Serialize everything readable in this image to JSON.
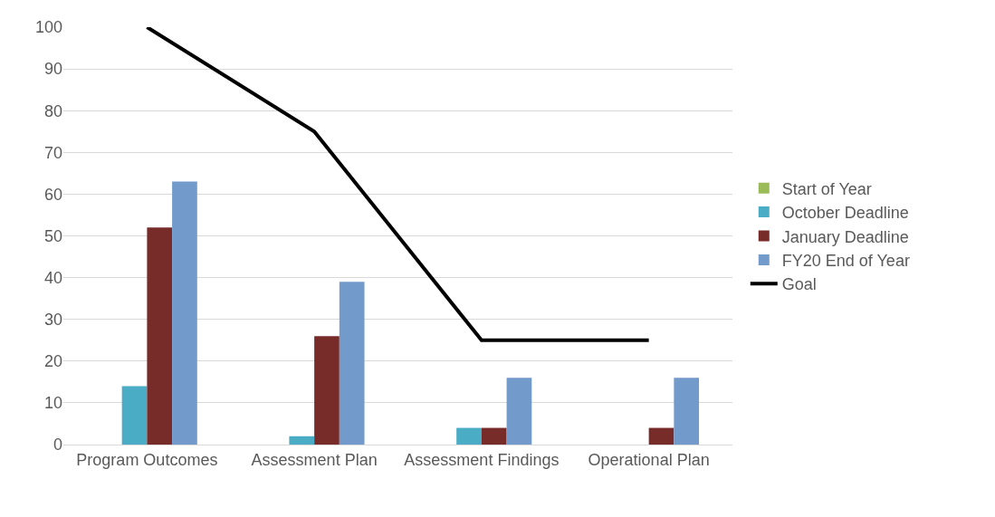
{
  "chart_data": {
    "type": "bar",
    "categories": [
      "Program Outcomes",
      "Assessment Plan",
      "Assessment Findings",
      "Operational Plan"
    ],
    "series": [
      {
        "name": "Start of Year",
        "color": "#9bbb59",
        "values": [
          0,
          0,
          0,
          0
        ]
      },
      {
        "name": "October Deadline",
        "color": "#4bacc6",
        "values": [
          14,
          2,
          4,
          0
        ]
      },
      {
        "name": "January Deadline",
        "color": "#772c2a",
        "values": [
          52,
          26,
          4,
          4
        ]
      },
      {
        "name": "FY20 End of Year",
        "color": "#729aca",
        "values": [
          63,
          39,
          16,
          16
        ]
      },
      {
        "name": "Goal",
        "type": "line",
        "color": "#000000",
        "values": [
          100,
          75,
          25,
          25
        ]
      }
    ],
    "ylim": [
      0,
      100
    ],
    "yticks": [
      0,
      10,
      20,
      30,
      40,
      50,
      60,
      70,
      80,
      90,
      100
    ],
    "grid": "y",
    "legend": "right"
  }
}
